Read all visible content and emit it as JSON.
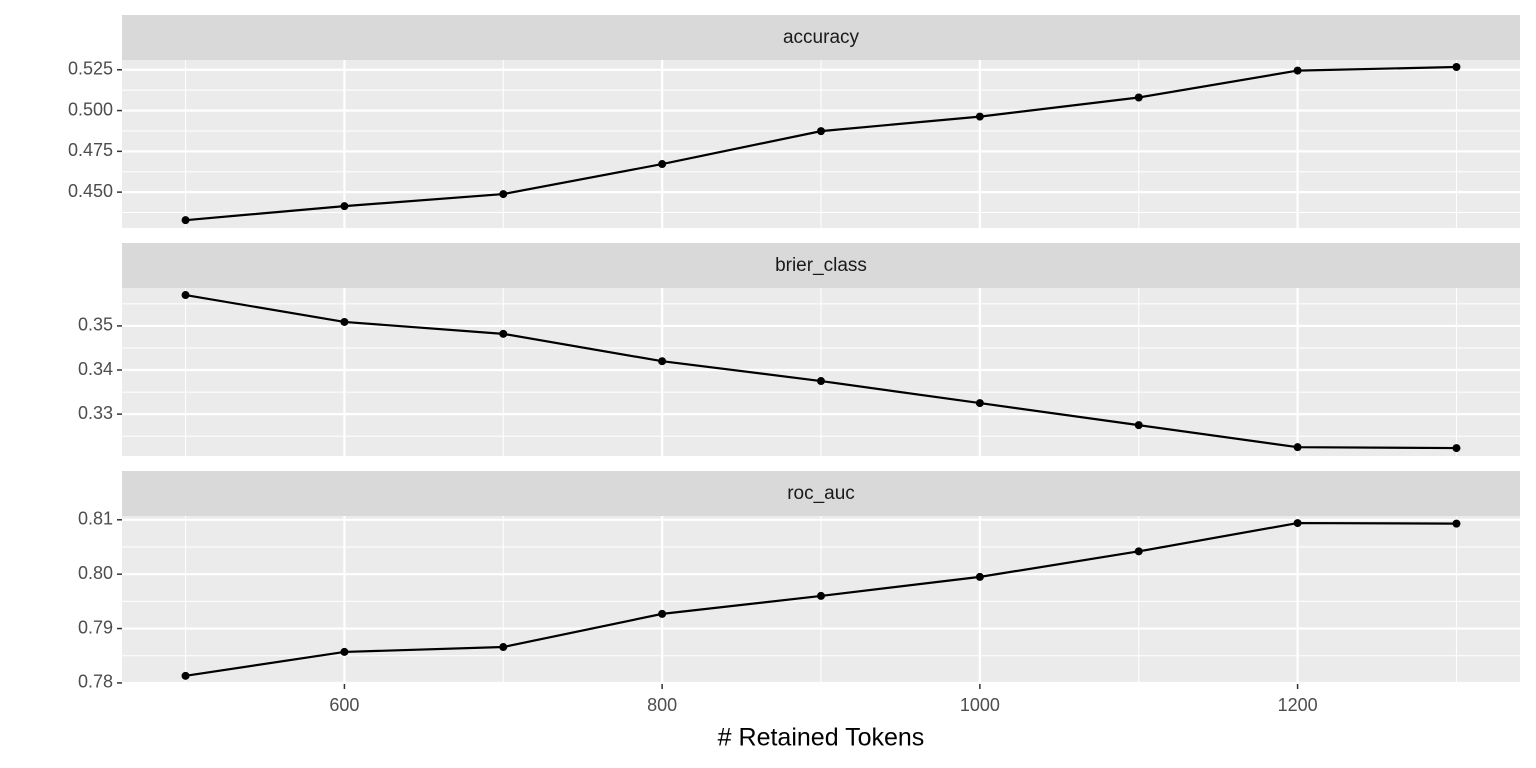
{
  "chart_data": [
    {
      "type": "line",
      "title": "accuracy",
      "x": [
        500,
        600,
        700,
        800,
        900,
        1000,
        1100,
        1200,
        1300
      ],
      "values": [
        0.4328,
        0.4414,
        0.4488,
        0.4672,
        0.4874,
        0.4963,
        0.508,
        0.5245,
        0.5267
      ],
      "xlim": [
        460,
        1340
      ],
      "xticks": [
        600,
        800,
        1000,
        1200
      ],
      "ylim": [
        0.428,
        0.531
      ],
      "yticks": [
        {
          "value": 0.45,
          "label": "0.450"
        },
        0.475,
        {
          "value": 0.5,
          "label": "0.500"
        },
        0.525
      ],
      "color": "#000000",
      "grid": true
    },
    {
      "type": "line",
      "title": "brier_class",
      "x": [
        500,
        600,
        700,
        800,
        900,
        1000,
        1100,
        1200,
        1300
      ],
      "values": [
        0.357,
        0.3509,
        0.3482,
        0.342,
        0.3375,
        0.3325,
        0.3275,
        0.3225,
        0.3223
      ],
      "xlim": [
        460,
        1340
      ],
      "xticks": [
        600,
        800,
        1000,
        1200
      ],
      "ylim": [
        0.3205,
        0.3586
      ],
      "yticks": [
        0.33,
        0.34,
        0.35
      ],
      "color": "#000000",
      "grid": true
    },
    {
      "type": "line",
      "title": "roc_auc",
      "x": [
        500,
        600,
        700,
        800,
        900,
        1000,
        1100,
        1200,
        1300
      ],
      "values": [
        0.7813,
        0.7857,
        0.7866,
        0.7927,
        0.796,
        0.7995,
        0.8042,
        0.8094,
        0.8093
      ],
      "xlim": [
        460,
        1340
      ],
      "xticks": [
        600,
        800,
        1000,
        1200
      ],
      "ylim": [
        0.7798,
        0.8107
      ],
      "yticks": [
        0.78,
        0.79,
        {
          "value": 0.8,
          "label": "0.80"
        },
        0.81
      ],
      "color": "#000000",
      "grid": true,
      "xlabel": "# Retained Tokens"
    }
  ]
}
